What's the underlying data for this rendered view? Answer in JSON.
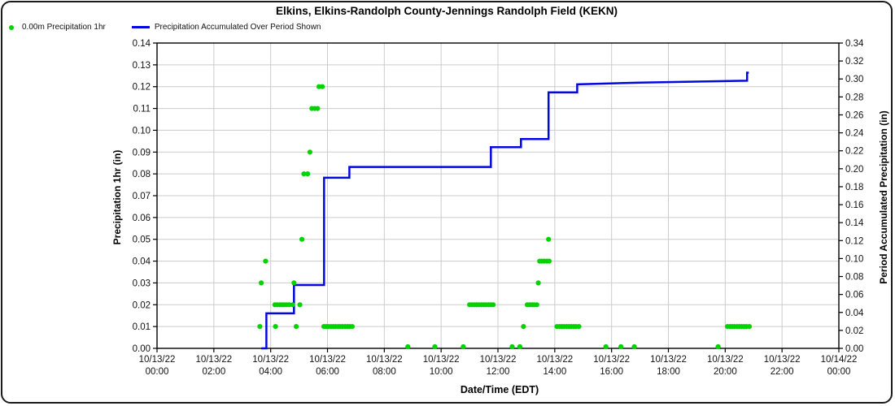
{
  "chart_data": {
    "type": "mixed",
    "title": "Elkins, Elkins-Randolph County-Jennings Randolph Field (KEKN)",
    "xlabel": "Date/Time (EDT)",
    "ylabel_left": "Precipitation 1hr (in)",
    "ylabel_right": "Period Accumulated Precipitation (in)",
    "x_axis": {
      "unit": "hours_since_10/13/22_00:00_EDT",
      "range": [
        0,
        24
      ],
      "tick_every_hours": 2,
      "ticks": [
        {
          "date": "10/13/22",
          "time": "00:00"
        },
        {
          "date": "10/13/22",
          "time": "02:00"
        },
        {
          "date": "10/13/22",
          "time": "04:00"
        },
        {
          "date": "10/13/22",
          "time": "06:00"
        },
        {
          "date": "10/13/22",
          "time": "08:00"
        },
        {
          "date": "10/13/22",
          "time": "10:00"
        },
        {
          "date": "10/13/22",
          "time": "12:00"
        },
        {
          "date": "10/13/22",
          "time": "14:00"
        },
        {
          "date": "10/13/22",
          "time": "16:00"
        },
        {
          "date": "10/13/22",
          "time": "18:00"
        },
        {
          "date": "10/13/22",
          "time": "20:00"
        },
        {
          "date": "10/13/22",
          "time": "22:00"
        },
        {
          "date": "10/14/22",
          "time": "00:00"
        }
      ]
    },
    "y_left": {
      "range": [
        0,
        0.14
      ],
      "ticks": [
        "0.00",
        "0.01",
        "0.02",
        "0.03",
        "0.04",
        "0.05",
        "0.06",
        "0.07",
        "0.08",
        "0.09",
        "0.10",
        "0.11",
        "0.12",
        "0.13",
        "0.14"
      ]
    },
    "y_right": {
      "range": [
        0,
        0.34
      ],
      "ticks": [
        "0.00",
        "0.02",
        "0.04",
        "0.06",
        "0.08",
        "0.10",
        "0.12",
        "0.14",
        "0.16",
        "0.18",
        "0.20",
        "0.22",
        "0.24",
        "0.26",
        "0.28",
        "0.30",
        "0.32",
        "0.34"
      ]
    },
    "grid": true,
    "legend_position": "top-left",
    "colors": {
      "scatter": "#00d400",
      "line": "#0008dd",
      "grid": "#cccccc",
      "axis": "#000000",
      "text": "#111111"
    },
    "series": [
      {
        "name": "0.00m Precipitation 1hr",
        "type": "scatter",
        "axis": "left",
        "color": "#00d400",
        "points": [
          [
            3.62,
            0.01
          ],
          [
            3.67,
            0.03
          ],
          [
            3.82,
            0.04
          ],
          [
            4.15,
            0.02
          ],
          [
            4.17,
            0.01
          ],
          [
            4.23,
            0.02
          ],
          [
            4.32,
            0.02
          ],
          [
            4.4,
            0.02
          ],
          [
            4.48,
            0.02
          ],
          [
            4.57,
            0.02
          ],
          [
            4.65,
            0.02
          ],
          [
            4.77,
            0.02
          ],
          [
            4.82,
            0.03
          ],
          [
            4.9,
            0.01
          ],
          [
            5.03,
            0.02
          ],
          [
            5.1,
            0.05
          ],
          [
            5.17,
            0.08
          ],
          [
            5.3,
            0.08
          ],
          [
            5.38,
            0.09
          ],
          [
            5.45,
            0.11
          ],
          [
            5.55,
            0.11
          ],
          [
            5.65,
            0.11
          ],
          [
            5.7,
            0.12
          ],
          [
            5.82,
            0.12
          ],
          [
            5.87,
            0.01
          ],
          [
            5.95,
            0.01
          ],
          [
            6.03,
            0.01
          ],
          [
            6.12,
            0.01
          ],
          [
            6.2,
            0.01
          ],
          [
            6.28,
            0.01
          ],
          [
            6.37,
            0.01
          ],
          [
            6.45,
            0.01
          ],
          [
            6.53,
            0.01
          ],
          [
            6.62,
            0.01
          ],
          [
            6.7,
            0.01
          ],
          [
            6.78,
            0.01
          ],
          [
            6.87,
            0.01
          ],
          [
            8.83,
            0.0
          ],
          [
            9.78,
            0.0
          ],
          [
            10.78,
            0.0
          ],
          [
            11.0,
            0.02
          ],
          [
            11.08,
            0.02
          ],
          [
            11.17,
            0.02
          ],
          [
            11.25,
            0.02
          ],
          [
            11.33,
            0.02
          ],
          [
            11.42,
            0.02
          ],
          [
            11.5,
            0.02
          ],
          [
            11.58,
            0.02
          ],
          [
            11.67,
            0.02
          ],
          [
            11.75,
            0.02
          ],
          [
            11.83,
            0.02
          ],
          [
            12.5,
            0.0
          ],
          [
            12.77,
            0.0
          ],
          [
            12.9,
            0.01
          ],
          [
            13.03,
            0.02
          ],
          [
            13.12,
            0.02
          ],
          [
            13.2,
            0.02
          ],
          [
            13.28,
            0.02
          ],
          [
            13.37,
            0.02
          ],
          [
            13.42,
            0.03
          ],
          [
            13.47,
            0.04
          ],
          [
            13.55,
            0.04
          ],
          [
            13.63,
            0.04
          ],
          [
            13.72,
            0.04
          ],
          [
            13.8,
            0.04
          ],
          [
            13.78,
            0.05
          ],
          [
            14.08,
            0.01
          ],
          [
            14.17,
            0.01
          ],
          [
            14.25,
            0.01
          ],
          [
            14.33,
            0.01
          ],
          [
            14.42,
            0.01
          ],
          [
            14.5,
            0.01
          ],
          [
            14.58,
            0.01
          ],
          [
            14.67,
            0.01
          ],
          [
            14.75,
            0.01
          ],
          [
            14.85,
            0.01
          ],
          [
            15.8,
            0.0
          ],
          [
            16.33,
            0.0
          ],
          [
            16.8,
            0.0
          ],
          [
            19.75,
            0.0
          ],
          [
            20.08,
            0.01
          ],
          [
            20.17,
            0.01
          ],
          [
            20.25,
            0.01
          ],
          [
            20.33,
            0.01
          ],
          [
            20.42,
            0.01
          ],
          [
            20.5,
            0.01
          ],
          [
            20.58,
            0.01
          ],
          [
            20.67,
            0.01
          ],
          [
            20.75,
            0.01
          ],
          [
            20.85,
            0.01
          ]
        ]
      },
      {
        "name": "Precipitation Accumulated Over Period Shown",
        "type": "step-line",
        "axis": "right",
        "color": "#0008dd",
        "points": [
          [
            3.67,
            0.0
          ],
          [
            3.85,
            0.0
          ],
          [
            3.85,
            0.039
          ],
          [
            4.82,
            0.039
          ],
          [
            4.82,
            0.0705
          ],
          [
            5.88,
            0.0705
          ],
          [
            5.88,
            0.19
          ],
          [
            6.77,
            0.19
          ],
          [
            6.77,
            0.202
          ],
          [
            11.75,
            0.202
          ],
          [
            11.75,
            0.224
          ],
          [
            12.81,
            0.224
          ],
          [
            12.81,
            0.233
          ],
          [
            13.78,
            0.233
          ],
          [
            13.78,
            0.285
          ],
          [
            14.79,
            0.285
          ],
          [
            14.79,
            0.294
          ],
          [
            17.0,
            0.296
          ],
          [
            20.77,
            0.298
          ],
          [
            20.77,
            0.307
          ],
          [
            20.83,
            0.307
          ]
        ]
      }
    ]
  },
  "layout_text": {
    "note": ""
  }
}
